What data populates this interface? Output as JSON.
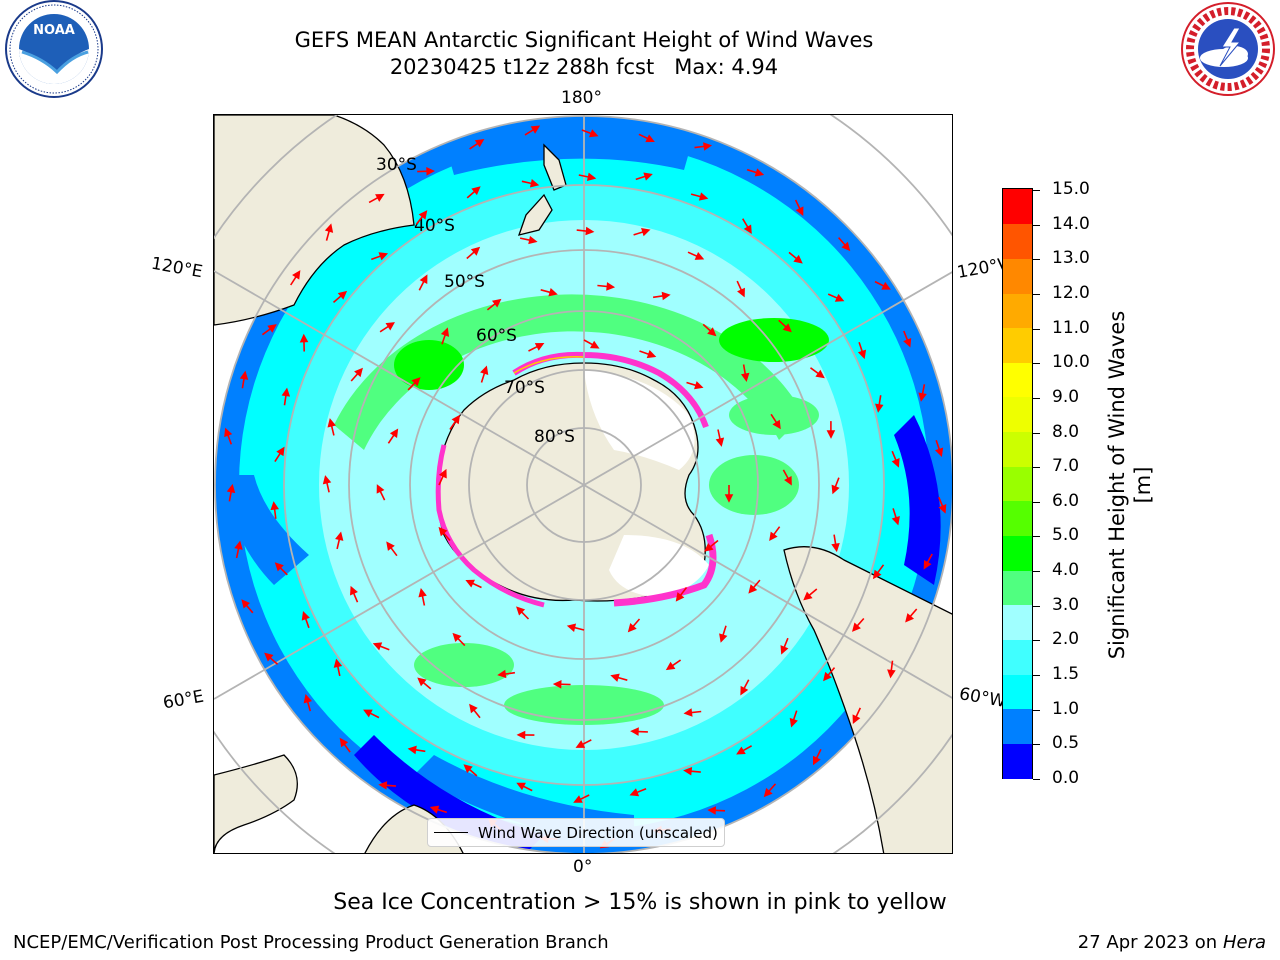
{
  "figure": {
    "title_line1": "GEFS MEAN Antarctic Significant Height of Wind Waves",
    "title_line2": "20230425 t12z 288h fcst   Max: 4.94",
    "logos": {
      "left": "NOAA",
      "right": "NATIONAL WEATHER SERVICE"
    },
    "note": "Sea Ice Concentration > 15% is shown in pink to yellow",
    "footer_left": "NCEP/EMC/Verification Post Processing Product Generation Branch",
    "footer_date": "27 Apr 2023 on ",
    "footer_system": "Hera"
  },
  "map": {
    "projection": "south-polar-stereographic",
    "longitude_labels": {
      "top": "180°",
      "upper_left": "120°E",
      "upper_right": "120°W",
      "lower_left": "60°E",
      "lower_right": "60°W",
      "bottom": "0°"
    },
    "latitude_labels": [
      "30°S",
      "40°S",
      "50°S",
      "60°S",
      "70°S",
      "80°S"
    ],
    "legend_label": "Wind Wave Direction (unscaled)",
    "colors": {
      "land": "#efecdc",
      "ocean_low": "#00ffff",
      "ice": "#ff33cc",
      "arrows": "#ff0000",
      "grid": "#b4b4b4"
    }
  },
  "colorbar": {
    "label": "Significant Height of Wind Waves [m]",
    "tick_labels": [
      "15.0",
      "14.0",
      "13.0",
      "12.0",
      "11.0",
      "10.0",
      "9.0",
      "8.0",
      "7.0",
      "6.0",
      "5.0",
      "4.0",
      "3.0",
      "2.0",
      "1.5",
      "1.0",
      "0.5",
      "0.0"
    ],
    "bounds": [
      0.0,
      0.5,
      1.0,
      1.5,
      2.0,
      3.0,
      4.0,
      5.0,
      6.0,
      7.0,
      8.0,
      9.0,
      10.0,
      11.0,
      12.0,
      13.0,
      14.0,
      15.0
    ],
    "colors": [
      "#0000ff",
      "#0080ff",
      "#00ffff",
      "#40ffff",
      "#a0ffff",
      "#50ff80",
      "#00ff00",
      "#55ff00",
      "#99ff00",
      "#ccff00",
      "#eeff00",
      "#ffff00",
      "#ffcc00",
      "#ffaa00",
      "#ff8800",
      "#ff5500",
      "#ff0000"
    ]
  }
}
